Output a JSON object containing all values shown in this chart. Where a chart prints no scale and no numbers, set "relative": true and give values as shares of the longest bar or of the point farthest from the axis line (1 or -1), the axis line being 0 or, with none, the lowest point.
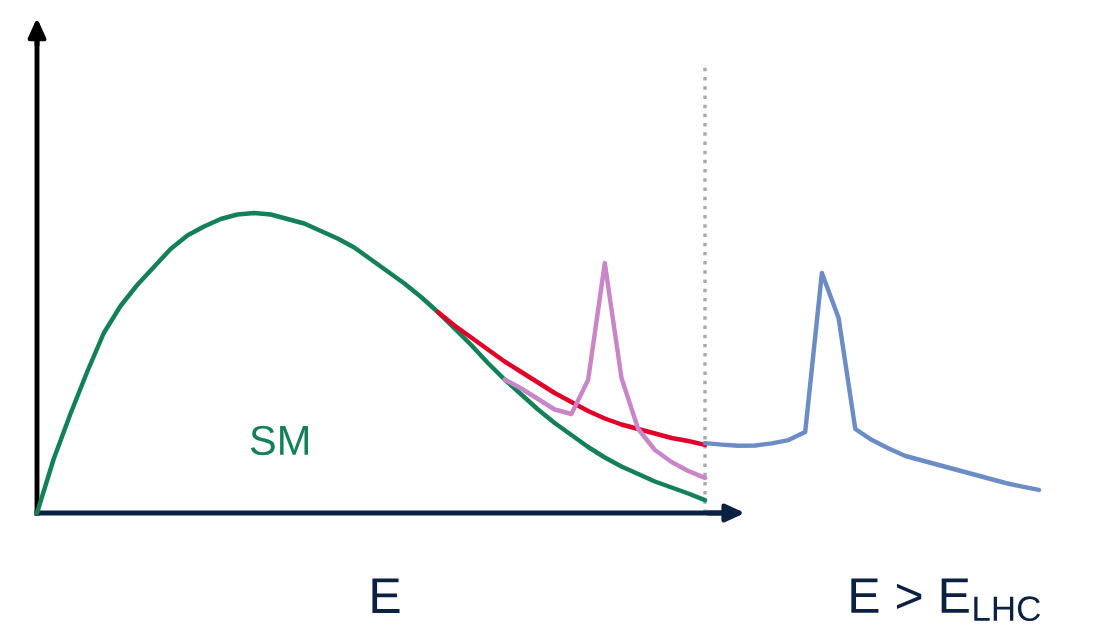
{
  "chart_data": {
    "type": "line",
    "relative": true,
    "xlabel": "E",
    "legend": false,
    "marker": "none",
    "line_style": "solid",
    "categories": [
      null,
      null,
      null,
      null,
      null,
      null,
      null,
      null,
      null,
      null,
      null,
      null,
      null,
      null,
      null,
      null,
      null,
      null,
      null,
      null,
      null,
      null,
      null,
      null,
      null,
      null,
      null,
      null,
      null,
      null,
      null,
      null,
      null,
      null,
      null,
      null,
      null,
      null,
      null,
      null,
      null,
      null,
      null,
      null,
      null,
      null,
      null,
      null,
      null,
      null,
      null,
      null,
      null,
      null,
      null,
      null,
      null,
      null,
      null,
      null,
      null
    ],
    "series": [
      {
        "name": "SM",
        "color": "#138058",
        "values": [
          0,
          0.18,
          0.33,
          0.47,
          0.6,
          0.69,
          0.76,
          0.82,
          0.88,
          0.925,
          0.955,
          0.98,
          0.995,
          1.0,
          0.995,
          0.98,
          0.965,
          0.94,
          0.915,
          0.885,
          0.845,
          0.805,
          0.765,
          0.72,
          0.67,
          0.615,
          0.56,
          0.5,
          0.445,
          0.395,
          0.345,
          0.3,
          0.26,
          0.22,
          0.185,
          0.155,
          0.13,
          0.105,
          0.085,
          0.065,
          0.043,
          null,
          null,
          null,
          null,
          null,
          null,
          null,
          null,
          null,
          null,
          null,
          null,
          null,
          null,
          null,
          null,
          null,
          null,
          null,
          null
        ]
      },
      {
        "color": "#e0002a",
        "values": [
          null,
          null,
          null,
          null,
          null,
          null,
          null,
          null,
          null,
          null,
          null,
          null,
          null,
          null,
          null,
          null,
          null,
          null,
          null,
          null,
          null,
          null,
          null,
          null,
          0.67,
          0.625,
          0.585,
          0.545,
          0.505,
          0.47,
          0.435,
          0.4,
          0.37,
          0.34,
          0.315,
          0.295,
          0.28,
          0.265,
          0.25,
          0.24,
          0.227,
          null,
          null,
          null,
          null,
          null,
          null,
          null,
          null,
          null,
          null,
          null,
          null,
          null,
          null,
          null,
          null,
          null,
          null,
          null,
          null
        ]
      },
      {
        "color": "#c986c6",
        "values": [
          null,
          null,
          null,
          null,
          null,
          null,
          null,
          null,
          null,
          null,
          null,
          null,
          null,
          null,
          null,
          null,
          null,
          null,
          null,
          null,
          null,
          null,
          null,
          null,
          null,
          null,
          null,
          null,
          0.445,
          0.415,
          0.38,
          0.345,
          0.33,
          0.443,
          0.833,
          0.45,
          0.28,
          0.21,
          0.17,
          0.14,
          0.117,
          null,
          null,
          null,
          null,
          null,
          null,
          null,
          null,
          null,
          null,
          null,
          null,
          null,
          null,
          null,
          null,
          null,
          null,
          null,
          null
        ]
      },
      {
        "color": "#6b8cc4",
        "values": [
          null,
          null,
          null,
          null,
          null,
          null,
          null,
          null,
          null,
          null,
          null,
          null,
          null,
          null,
          null,
          null,
          null,
          null,
          null,
          null,
          null,
          null,
          null,
          null,
          null,
          null,
          null,
          null,
          null,
          null,
          null,
          null,
          null,
          null,
          null,
          null,
          null,
          null,
          null,
          null,
          0.233,
          0.228,
          0.224,
          0.225,
          0.232,
          0.243,
          0.27,
          0.8,
          0.65,
          0.28,
          0.243,
          0.215,
          0.19,
          0.175,
          0.16,
          0.145,
          0.13,
          0.115,
          0.1,
          0.088,
          0.077
        ]
      }
    ],
    "annotations": [
      "E > E$_{LHC}$"
    ]
  }
}
